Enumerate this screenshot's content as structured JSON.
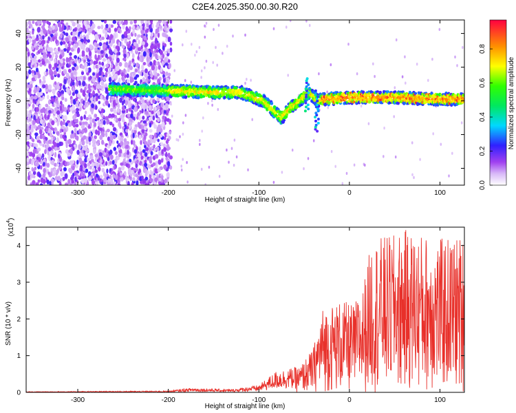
{
  "title": "C2E4.2025.350.00.30.R20",
  "chart_data": [
    {
      "type": "heatmap",
      "name": "spectrogram",
      "xlabel": "Height of straight line (km)",
      "ylabel": "Frequency (Hz)",
      "xlim": [
        -357,
        127
      ],
      "ylim": [
        -50,
        48
      ],
      "xticks": [
        "-300",
        "-200",
        "-100",
        "0",
        "100"
      ],
      "xtick_values": [
        -300,
        -200,
        -100,
        0,
        100
      ],
      "yticks": [
        "-40",
        "-20",
        "0",
        "20",
        "40"
      ],
      "ytick_values": [
        -40,
        -20,
        0,
        20,
        40
      ],
      "colorbar": {
        "label": "Normalized spectral amplitude",
        "range": [
          0,
          0.97
        ],
        "ticks": [
          "0.0",
          "0.2",
          "0.4",
          "0.6",
          "0.8"
        ],
        "tick_values": [
          0.0,
          0.2,
          0.4,
          0.6,
          0.8
        ]
      },
      "noise_region_km": [
        -357,
        -197
      ],
      "signal_band": {
        "start_km": -265,
        "end_km": 127,
        "center_freq_hz": [
          [
            -265,
            7
          ],
          [
            -200,
            6
          ],
          [
            -150,
            5
          ],
          [
            -120,
            5
          ],
          [
            -95,
            0
          ],
          [
            -75,
            -10
          ],
          [
            -65,
            -4
          ],
          [
            -55,
            0
          ],
          [
            -45,
            5
          ],
          [
            -35,
            0
          ],
          [
            -28,
            1
          ],
          [
            0,
            2
          ],
          [
            50,
            2
          ],
          [
            100,
            1
          ],
          [
            127,
            1
          ]
        ]
      }
    },
    {
      "type": "line",
      "name": "snr",
      "xlabel": "Height of straight line (km)",
      "ylabel": "SNR (10 * v/v)",
      "multiplier": "(x10",
      "multiplier_exp": "4",
      "xlim": [
        -357,
        127
      ],
      "ylim": [
        0,
        4.5
      ],
      "xticks": [
        "-300",
        "-200",
        "-100",
        "0",
        "100"
      ],
      "xtick_values": [
        -300,
        -200,
        -100,
        0,
        100
      ],
      "yticks": [
        "0",
        "1",
        "2",
        "3",
        "4"
      ],
      "ytick_values": [
        0,
        1,
        2,
        3,
        4
      ],
      "color": "#e8302a",
      "envelope": [
        [
          -357,
          0.02
        ],
        [
          -200,
          0.04
        ],
        [
          -175,
          0.12
        ],
        [
          -130,
          0.08
        ],
        [
          -100,
          0.2
        ],
        [
          -80,
          0.6
        ],
        [
          -55,
          0.7
        ],
        [
          -40,
          1.2
        ],
        [
          -30,
          2.3
        ],
        [
          -10,
          2.5
        ],
        [
          5,
          2.4
        ],
        [
          15,
          2.9
        ],
        [
          25,
          4.2
        ],
        [
          50,
          4.3
        ],
        [
          60,
          4.45
        ],
        [
          85,
          4.3
        ],
        [
          100,
          4.2
        ],
        [
          127,
          4.3
        ]
      ]
    }
  ]
}
